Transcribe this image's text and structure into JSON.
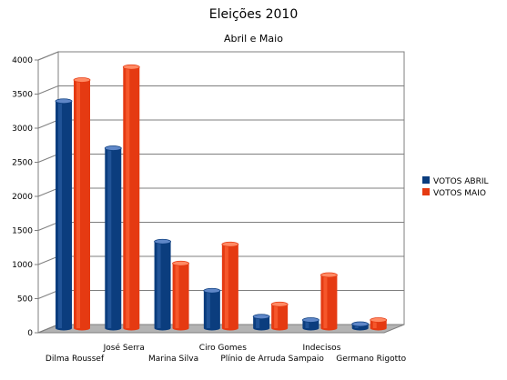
{
  "chart_data": {
    "type": "bar",
    "title": "Eleições 2010",
    "subtitle": "Abril e Maio",
    "xlabel": "",
    "ylabel": "",
    "categories": [
      "Dilma Roussef",
      "José Serra",
      "Marina Silva",
      "Ciro Gomes",
      "Plínio de Arruda Sampaio",
      "Indecisos",
      "Germano Rigotto"
    ],
    "series": [
      {
        "name": "VOTOS ABRIL",
        "values": [
          3330,
          2640,
          1270,
          550,
          170,
          120,
          60
        ]
      },
      {
        "name": "VOTOS MAIO",
        "values": [
          3640,
          3830,
          950,
          1230,
          350,
          780,
          120
        ]
      }
    ],
    "ylim": [
      0,
      4000
    ],
    "yticks": [
      "0",
      "500",
      "1000",
      "1500",
      "2000",
      "2500",
      "3000",
      "3500",
      "4000"
    ],
    "grid": true,
    "legend_position": "right",
    "colors": {
      "VOTOS ABRIL": "#0b3d7e",
      "VOTOS MAIO": "#e53a12"
    }
  }
}
